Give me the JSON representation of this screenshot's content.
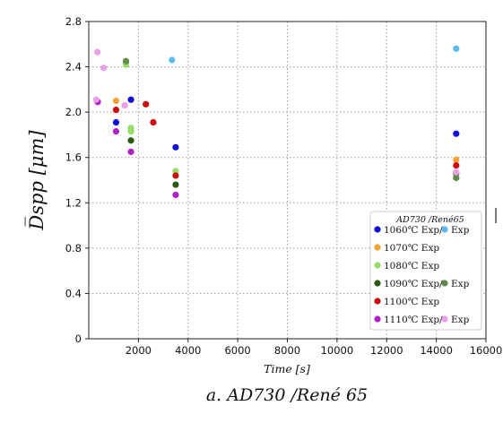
{
  "chart_data": {
    "type": "scatter",
    "title": "",
    "caption": "a. AD730 /René 65",
    "xlabel": "Time [s]",
    "ylabel": "D̅spp [μm]",
    "xlim": [
      0,
      16000
    ],
    "ylim": [
      0,
      2.8
    ],
    "x_ticks": [
      "2000",
      "4000",
      "6000",
      "8000",
      "10000",
      "12000",
      "14000",
      "16000"
    ],
    "x_tick_values": [
      2000,
      4000,
      6000,
      8000,
      10000,
      12000,
      14000,
      16000
    ],
    "y_ticks": [
      "0",
      "0.4",
      "0.8",
      "1.2",
      "1.6",
      "2.0",
      "2.4",
      "2.8"
    ],
    "y_tick_values": [
      0,
      0.4,
      0.8,
      1.2,
      1.6,
      2.0,
      2.4,
      2.8
    ],
    "grid": true,
    "legend_title": "AD730 /René65",
    "legend_position": "bottom-right",
    "legend": [
      {
        "label_a": "1060℃ Exp/",
        "label_b": "Exp",
        "color_a": "#1010d8",
        "color_b": "#5cbcf0"
      },
      {
        "label_a": "1070℃ Exp",
        "label_b": "",
        "color_a": "#f5a030",
        "color_b": ""
      },
      {
        "label_a": "1080℃ Exp",
        "label_b": "",
        "color_a": "#98dc68",
        "color_b": ""
      },
      {
        "label_a": "1090℃ Exp/",
        "label_b": "Exp",
        "color_a": "#2a5a10",
        "color_b": "#5e8a4a"
      },
      {
        "label_a": "1100℃ Exp",
        "label_b": "",
        "color_a": "#cc0c0c",
        "color_b": ""
      },
      {
        "label_a": "1110℃ Exp/",
        "label_b": "Exp",
        "color_a": "#b020c8",
        "color_b": "#eaa0e6"
      }
    ],
    "series": [
      {
        "color": "#1010d8",
        "points": [
          [
            1100,
            1.91
          ],
          [
            1700,
            2.11
          ],
          [
            3500,
            1.69
          ],
          [
            14800,
            1.81
          ]
        ]
      },
      {
        "color": "#5cbcf0",
        "points": [
          [
            1500,
            2.44
          ],
          [
            3350,
            2.46
          ],
          [
            14800,
            2.56
          ]
        ]
      },
      {
        "color": "#f5a030",
        "points": [
          [
            1100,
            2.1
          ],
          [
            14800,
            1.58
          ]
        ]
      },
      {
        "color": "#98dc68",
        "points": [
          [
            1500,
            2.42
          ],
          [
            1700,
            1.83
          ],
          [
            1700,
            1.86
          ],
          [
            3500,
            1.48
          ]
        ]
      },
      {
        "color": "#2a5a10",
        "points": [
          [
            1700,
            1.75
          ],
          [
            3500,
            1.36
          ],
          [
            14800,
            1.46
          ]
        ]
      },
      {
        "color": "#5e8a4a",
        "points": [
          [
            1500,
            2.45
          ],
          [
            14800,
            1.42
          ]
        ]
      },
      {
        "color": "#cc0c0c",
        "points": [
          [
            360,
            2.09
          ],
          [
            1100,
            2.02
          ],
          [
            2300,
            2.07
          ],
          [
            2600,
            1.91
          ],
          [
            3500,
            1.44
          ],
          [
            14800,
            1.53
          ]
        ]
      },
      {
        "color": "#b020c8",
        "points": [
          [
            360,
            2.09
          ],
          [
            1100,
            1.83
          ],
          [
            1700,
            1.65
          ],
          [
            3500,
            1.27
          ]
        ]
      },
      {
        "color": "#eaa0e6",
        "points": [
          [
            350,
            2.53
          ],
          [
            600,
            2.39
          ],
          [
            1450,
            2.06
          ],
          [
            300,
            2.11
          ],
          [
            14800,
            1.47
          ]
        ]
      }
    ]
  }
}
